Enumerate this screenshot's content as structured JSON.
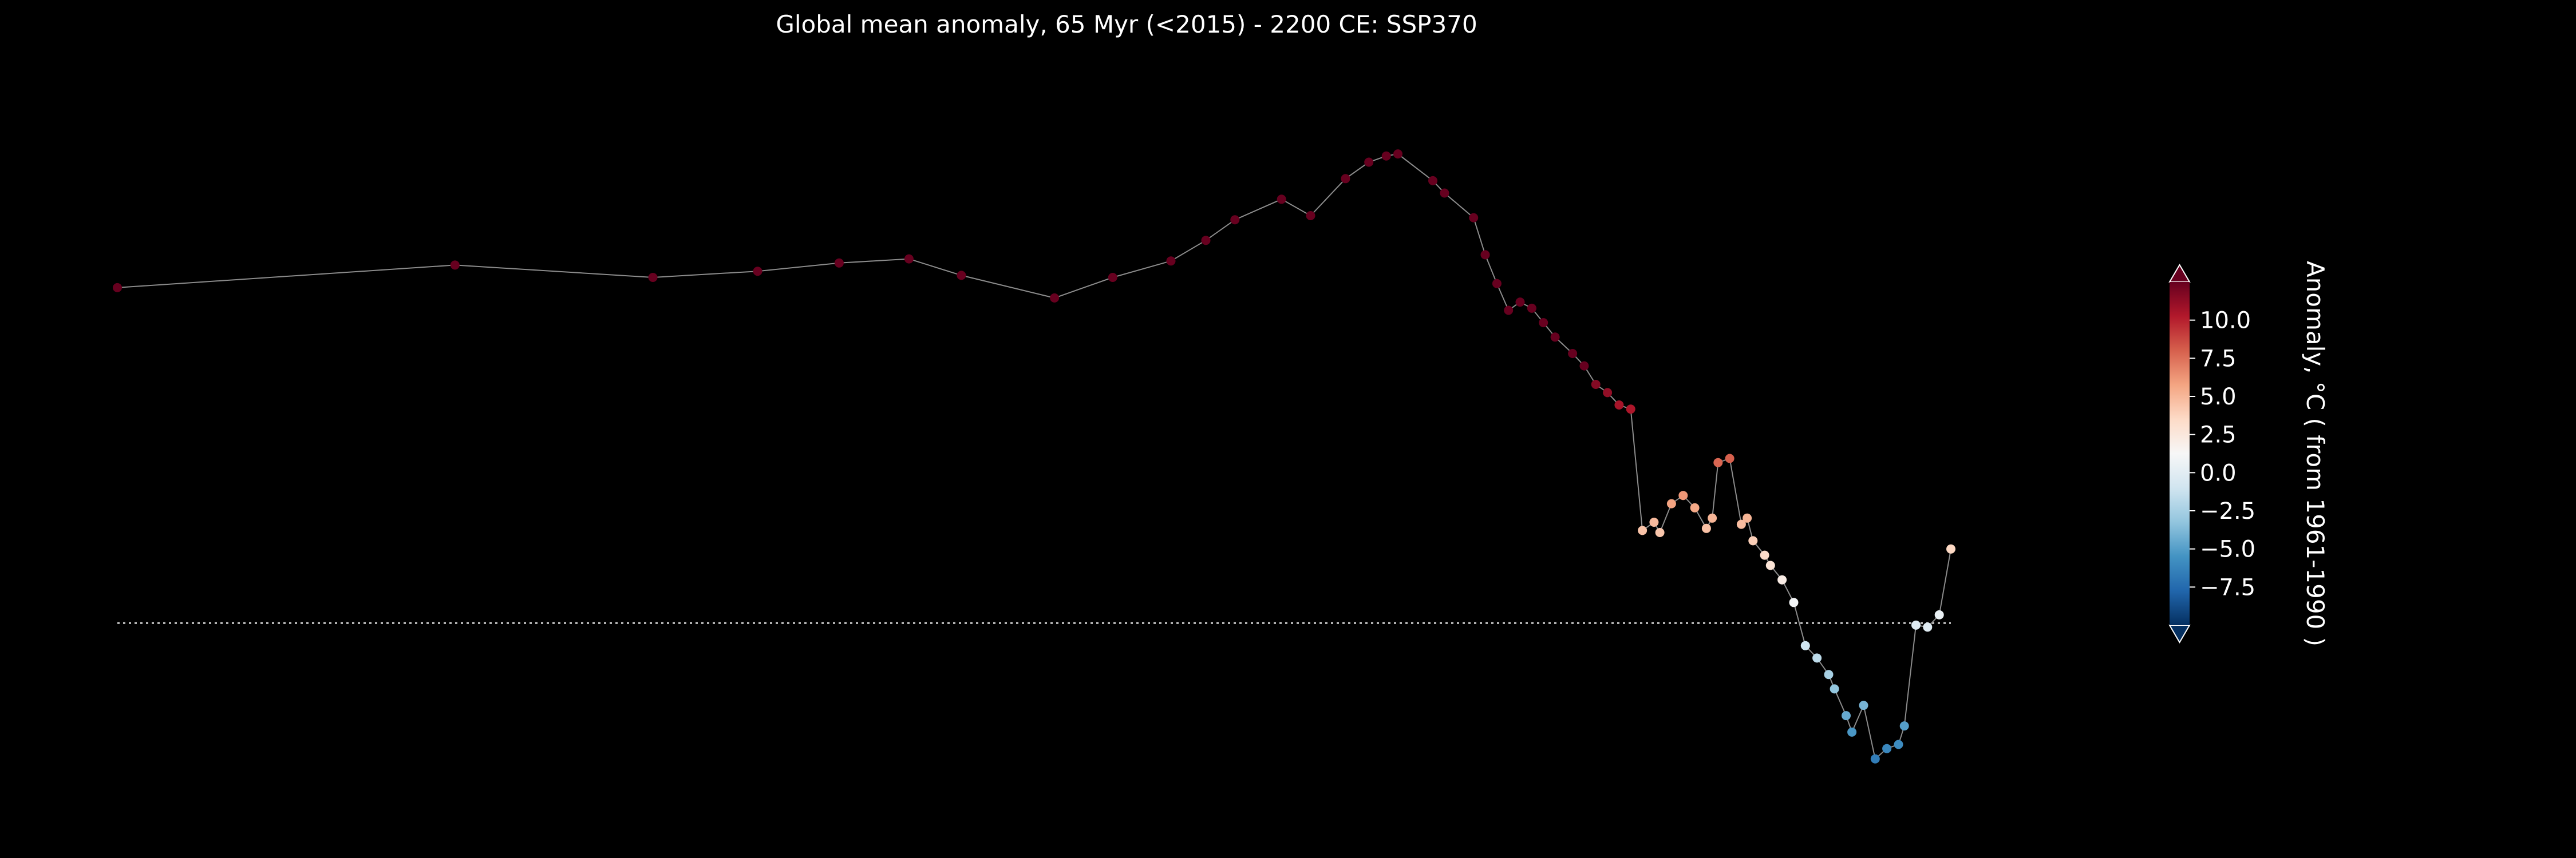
{
  "chart_data": {
    "type": "scatter",
    "title": "Global mean anomaly, 65 Myr (<2015) - 2200 CE: SSP370",
    "xlabel": "",
    "ylabel": "",
    "axes_visible": false,
    "background": "#000000",
    "connector_color": "#8c8c8c",
    "reference_line": {
      "y": 0,
      "style": "dotted",
      "color": "#cccccc"
    },
    "xlim": [
      0,
      315
    ],
    "ylim": [
      -8.5,
      25
    ],
    "colormap": "RdBu_r",
    "colorbar": {
      "label": "Anomaly, °C ( from 1961-1990 )",
      "ticks": [
        10.0,
        7.5,
        5.0,
        2.5,
        0.0,
        -2.5,
        -5.0,
        -7.5
      ],
      "tick_labels": [
        "10.0",
        "7.5",
        "5.0",
        "2.5",
        "0.0",
        "−2.5",
        "−5.0",
        "−7.5"
      ],
      "range": [
        -10,
        12.5
      ],
      "extend": "both",
      "position": "right"
    },
    "x": [
      0,
      58,
      92,
      110,
      124,
      136,
      145,
      161,
      171,
      181,
      187,
      192,
      200,
      205,
      211,
      215,
      218,
      220,
      226,
      228,
      233,
      235,
      237,
      239,
      241,
      243,
      245,
      247,
      250,
      252,
      254,
      256,
      258,
      260,
      262,
      264,
      265,
      267,
      269,
      271,
      273,
      274,
      275,
      277,
      279,
      280,
      281,
      283,
      284,
      286,
      288,
      290,
      292,
      294,
      295,
      297,
      298,
      300,
      302,
      304,
      306,
      307,
      309,
      311,
      313,
      315
    ],
    "values": [
      16.3,
      17.4,
      16.8,
      17.1,
      17.5,
      17.7,
      16.9,
      15.8,
      16.8,
      17.6,
      18.6,
      19.6,
      20.6,
      19.8,
      21.6,
      22.4,
      22.7,
      22.8,
      21.5,
      20.9,
      19.7,
      17.9,
      16.5,
      15.2,
      15.6,
      15.3,
      14.6,
      13.9,
      13.1,
      12.5,
      11.6,
      11.2,
      10.6,
      10.4,
      4.5,
      4.9,
      4.4,
      5.8,
      6.2,
      5.6,
      4.6,
      5.1,
      7.8,
      8.0,
      4.8,
      5.1,
      4.0,
      3.3,
      2.8,
      2.1,
      1.0,
      -1.1,
      -1.7,
      -2.5,
      -3.2,
      -4.5,
      -5.3,
      -4.0,
      -6.6,
      -6.1,
      -5.9,
      -5.0,
      -0.1,
      -0.2,
      0.4,
      3.6
    ]
  }
}
